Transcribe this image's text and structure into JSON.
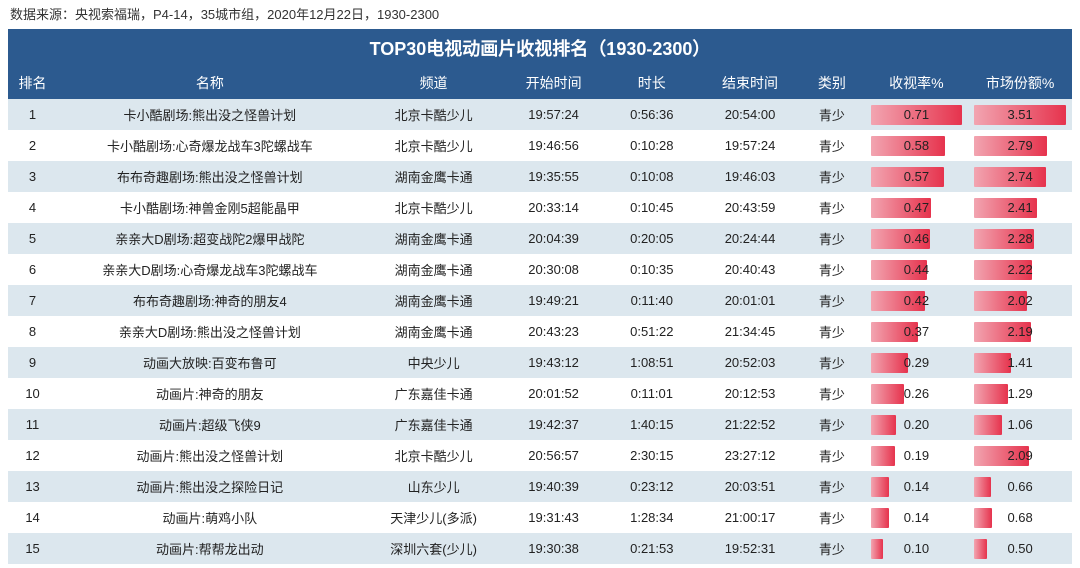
{
  "source_text": "数据来源：央视索福瑞，P4-14，35城市组，2020年12月22日，1930-2300",
  "title": "TOP30电视动画片收视排名（1930-2300）",
  "colors": {
    "header_bg": "#2c5a8f",
    "header_fg": "#ffffff",
    "row_even": "#dce7ee",
    "row_odd": "#ffffff",
    "bar_start": "#f2a5b1",
    "bar_end": "#e6334d",
    "text": "#222222"
  },
  "columns": [
    {
      "key": "rank",
      "label": "排名"
    },
    {
      "key": "name",
      "label": "名称"
    },
    {
      "key": "channel",
      "label": "频道"
    },
    {
      "key": "start",
      "label": "开始时间"
    },
    {
      "key": "dur",
      "label": "时长"
    },
    {
      "key": "end",
      "label": "结束时间"
    },
    {
      "key": "cat",
      "label": "类别"
    },
    {
      "key": "rating",
      "label": "收视率%"
    },
    {
      "key": "share",
      "label": "市场份额%"
    }
  ],
  "rating_max": 0.71,
  "share_max": 3.51,
  "rows": [
    {
      "rank": 1,
      "name": "卡小酷剧场:熊出没之怪兽计划",
      "channel": "北京卡酷少儿",
      "start": "19:57:24",
      "dur": "0:56:36",
      "end": "20:54:00",
      "cat": "青少",
      "rating": 0.71,
      "share": 3.51
    },
    {
      "rank": 2,
      "name": "卡小酷剧场:心奇爆龙战车3陀螺战车",
      "channel": "北京卡酷少儿",
      "start": "19:46:56",
      "dur": "0:10:28",
      "end": "19:57:24",
      "cat": "青少",
      "rating": 0.58,
      "share": 2.79
    },
    {
      "rank": 3,
      "name": "布布奇趣剧场:熊出没之怪兽计划",
      "channel": "湖南金鹰卡通",
      "start": "19:35:55",
      "dur": "0:10:08",
      "end": "19:46:03",
      "cat": "青少",
      "rating": 0.57,
      "share": 2.74
    },
    {
      "rank": 4,
      "name": "卡小酷剧场:神兽金刚5超能晶甲",
      "channel": "北京卡酷少儿",
      "start": "20:33:14",
      "dur": "0:10:45",
      "end": "20:43:59",
      "cat": "青少",
      "rating": 0.47,
      "share": 2.41
    },
    {
      "rank": 5,
      "name": "亲亲大D剧场:超变战陀2爆甲战陀",
      "channel": "湖南金鹰卡通",
      "start": "20:04:39",
      "dur": "0:20:05",
      "end": "20:24:44",
      "cat": "青少",
      "rating": 0.46,
      "share": 2.28
    },
    {
      "rank": 6,
      "name": "亲亲大D剧场:心奇爆龙战车3陀螺战车",
      "channel": "湖南金鹰卡通",
      "start": "20:30:08",
      "dur": "0:10:35",
      "end": "20:40:43",
      "cat": "青少",
      "rating": 0.44,
      "share": 2.22
    },
    {
      "rank": 7,
      "name": "布布奇趣剧场:神奇的朋友4",
      "channel": "湖南金鹰卡通",
      "start": "19:49:21",
      "dur": "0:11:40",
      "end": "20:01:01",
      "cat": "青少",
      "rating": 0.42,
      "share": 2.02
    },
    {
      "rank": 8,
      "name": "亲亲大D剧场:熊出没之怪兽计划",
      "channel": "湖南金鹰卡通",
      "start": "20:43:23",
      "dur": "0:51:22",
      "end": "21:34:45",
      "cat": "青少",
      "rating": 0.37,
      "share": 2.19
    },
    {
      "rank": 9,
      "name": "动画大放映:百变布鲁可",
      "channel": "中央少儿",
      "start": "19:43:12",
      "dur": "1:08:51",
      "end": "20:52:03",
      "cat": "青少",
      "rating": 0.29,
      "share": 1.41
    },
    {
      "rank": 10,
      "name": "动画片:神奇的朋友",
      "channel": "广东嘉佳卡通",
      "start": "20:01:52",
      "dur": "0:11:01",
      "end": "20:12:53",
      "cat": "青少",
      "rating": 0.26,
      "share": 1.29
    },
    {
      "rank": 11,
      "name": "动画片:超级飞侠9",
      "channel": "广东嘉佳卡通",
      "start": "19:42:37",
      "dur": "1:40:15",
      "end": "21:22:52",
      "cat": "青少",
      "rating": 0.2,
      "share": 1.06
    },
    {
      "rank": 12,
      "name": "动画片:熊出没之怪兽计划",
      "channel": "北京卡酷少儿",
      "start": "20:56:57",
      "dur": "2:30:15",
      "end": "23:27:12",
      "cat": "青少",
      "rating": 0.19,
      "share": 2.09
    },
    {
      "rank": 13,
      "name": "动画片:熊出没之探险日记",
      "channel": "山东少儿",
      "start": "19:40:39",
      "dur": "0:23:12",
      "end": "20:03:51",
      "cat": "青少",
      "rating": 0.14,
      "share": 0.66
    },
    {
      "rank": 14,
      "name": "动画片:萌鸡小队",
      "channel": "天津少儿(多派)",
      "start": "19:31:43",
      "dur": "1:28:34",
      "end": "21:00:17",
      "cat": "青少",
      "rating": 0.14,
      "share": 0.68
    },
    {
      "rank": 15,
      "name": "动画片:帮帮龙出动",
      "channel": "深圳六套(少儿)",
      "start": "19:30:38",
      "dur": "0:21:53",
      "end": "19:52:31",
      "cat": "青少",
      "rating": 0.1,
      "share": 0.5
    }
  ]
}
